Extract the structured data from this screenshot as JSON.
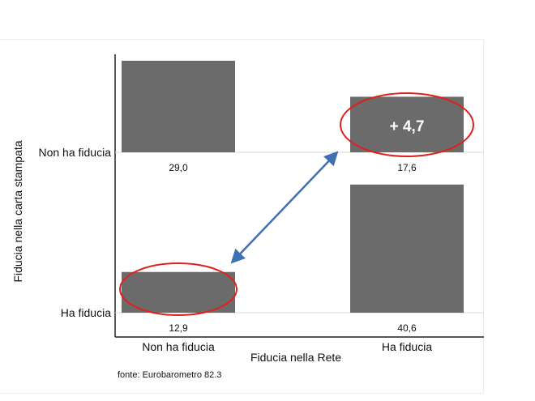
{
  "chart_data": {
    "type": "bar",
    "title": "",
    "xlabel": "Fiducia nella Rete",
    "ylabel": "Fiducia nella carta stampata",
    "x_categories": [
      "Non ha fiducia",
      "Ha fiducia"
    ],
    "y_categories": [
      "Non ha fiducia",
      "Ha fiducia"
    ],
    "cells": [
      {
        "x": "Non ha fiducia",
        "y": "Non ha fiducia",
        "value": 29.0,
        "label": "29,0"
      },
      {
        "x": "Ha fiducia",
        "y": "Non ha fiducia",
        "value": 17.6,
        "label": "17,6"
      },
      {
        "x": "Non ha fiducia",
        "y": "Ha fiducia",
        "value": 12.9,
        "label": "12,9"
      },
      {
        "x": "Ha fiducia",
        "y": "Ha fiducia",
        "value": 40.6,
        "label": "40,6"
      }
    ],
    "annotation": "+ 4,7",
    "source": "fonte: Eurobarometro 82.3",
    "bar_color": "#6b6b6b",
    "highlight_color": "#e0201c",
    "arrow_color": "#3f6fb4"
  }
}
